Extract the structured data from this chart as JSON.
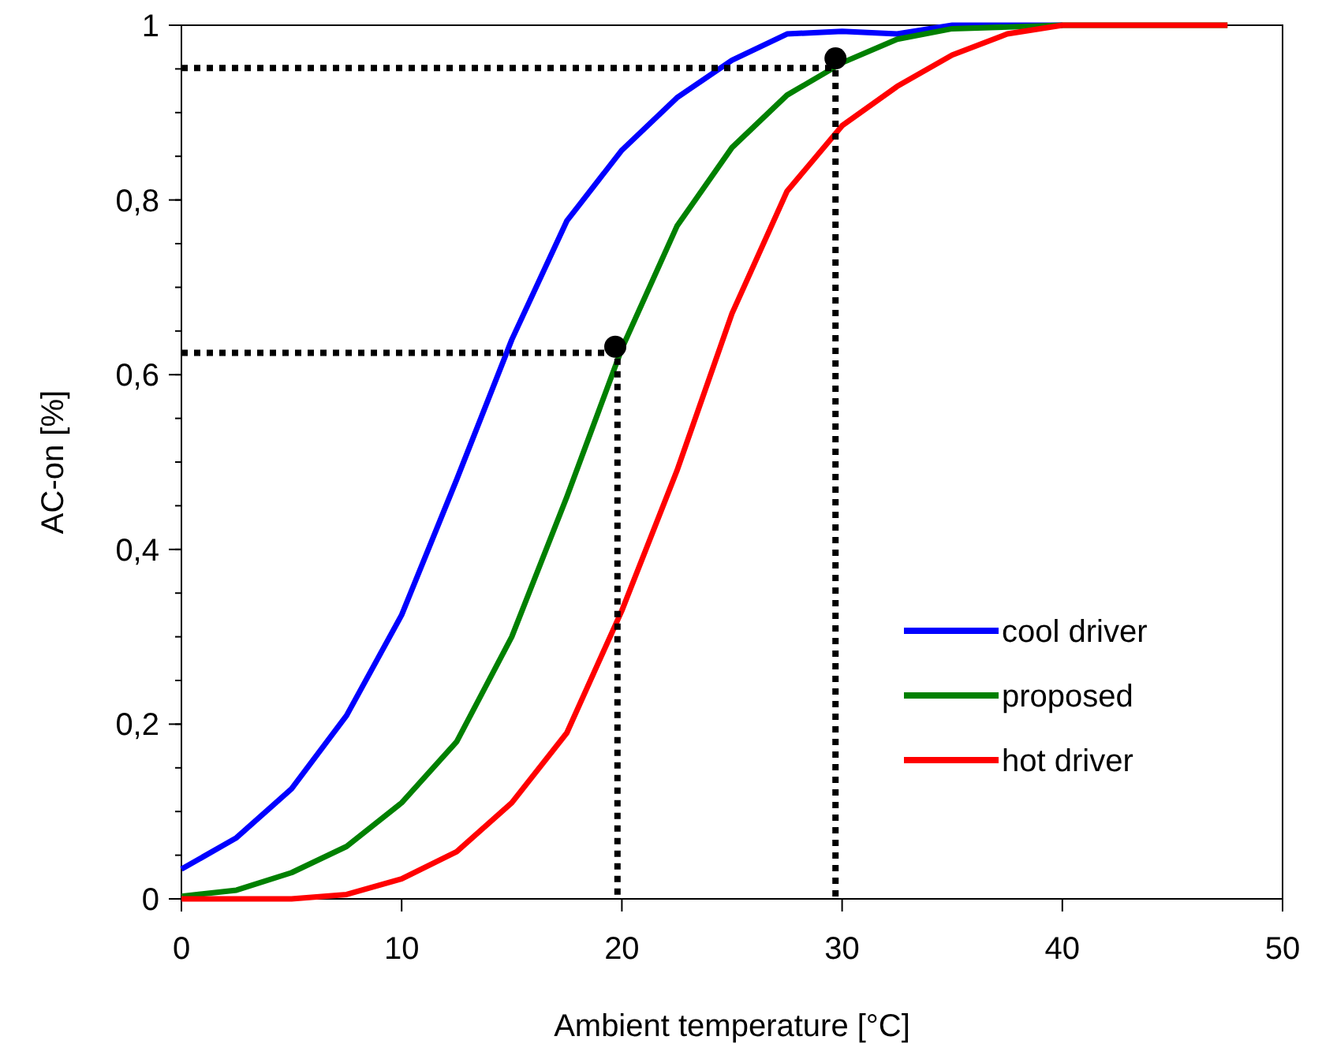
{
  "chart_data": {
    "type": "line",
    "xlabel": "Ambient temperature [°C]",
    "ylabel": "AC-on [%]",
    "xlim": [
      0,
      50
    ],
    "xticks": [
      0,
      10,
      20,
      30,
      40,
      50
    ],
    "ylim": [
      0,
      1
    ],
    "yticks": [
      0,
      {
        "value": 0.2,
        "label": "0,2"
      },
      {
        "value": 0.4,
        "label": "0,4"
      },
      {
        "value": 0.6,
        "label": "0,6"
      },
      {
        "value": 0.8,
        "label": "0,8"
      },
      1
    ],
    "grid": false,
    "legend": "bottom right",
    "marker": "none",
    "line_style": "solid",
    "series": [
      {
        "name": "cool driver",
        "color": "#0000ff",
        "x": [
          0,
          2.5,
          5,
          7.5,
          10,
          12.5,
          15,
          17.5,
          20,
          22.5,
          25,
          27.5,
          30,
          32.5,
          35,
          40
        ],
        "values": [
          0.034,
          0.07,
          0.126,
          0.21,
          0.325,
          0.48,
          0.64,
          0.776,
          0.857,
          0.917,
          0.96,
          0.99,
          0.993,
          0.99,
          1,
          1
        ]
      },
      {
        "name": "proposed",
        "color": "#008000",
        "x": [
          0,
          2.5,
          5,
          7.5,
          10,
          12.5,
          15,
          17.5,
          20,
          22.5,
          25,
          27.5,
          30,
          32.5,
          35,
          40,
          47.5
        ],
        "values": [
          0.003,
          0.01,
          0.03,
          0.06,
          0.11,
          0.18,
          0.3,
          0.46,
          0.63,
          0.77,
          0.86,
          0.92,
          0.957,
          0.984,
          0.996,
          1,
          1
        ]
      },
      {
        "name": "hot driver",
        "color": "#ff0000",
        "x": [
          0,
          5,
          7.5,
          10,
          12.5,
          15,
          17.5,
          20,
          22.5,
          25,
          27.5,
          30,
          32.5,
          35,
          37.5,
          40,
          47.5
        ],
        "values": [
          0,
          0,
          0.005,
          0.023,
          0.054,
          0.11,
          0.19,
          0.33,
          0.49,
          0.67,
          0.81,
          0.885,
          0.93,
          0.966,
          0.99,
          1,
          1
        ]
      },
      {
        "type": "line",
        "color": "#000000",
        "line_style": "dotted",
        "x": [
          0,
          19.8,
          19.8
        ],
        "values": [
          0.625,
          0.625,
          0
        ]
      },
      {
        "type": "line",
        "color": "#000000",
        "line_style": "dotted",
        "x": [
          0,
          29.7,
          29.7
        ],
        "values": [
          0.951,
          0.951,
          0
        ]
      },
      {
        "type": "scatter",
        "color": "#000000",
        "marker": "circle",
        "x": [
          19.7,
          29.7
        ],
        "values": [
          0.632,
          0.962
        ]
      }
    ]
  }
}
